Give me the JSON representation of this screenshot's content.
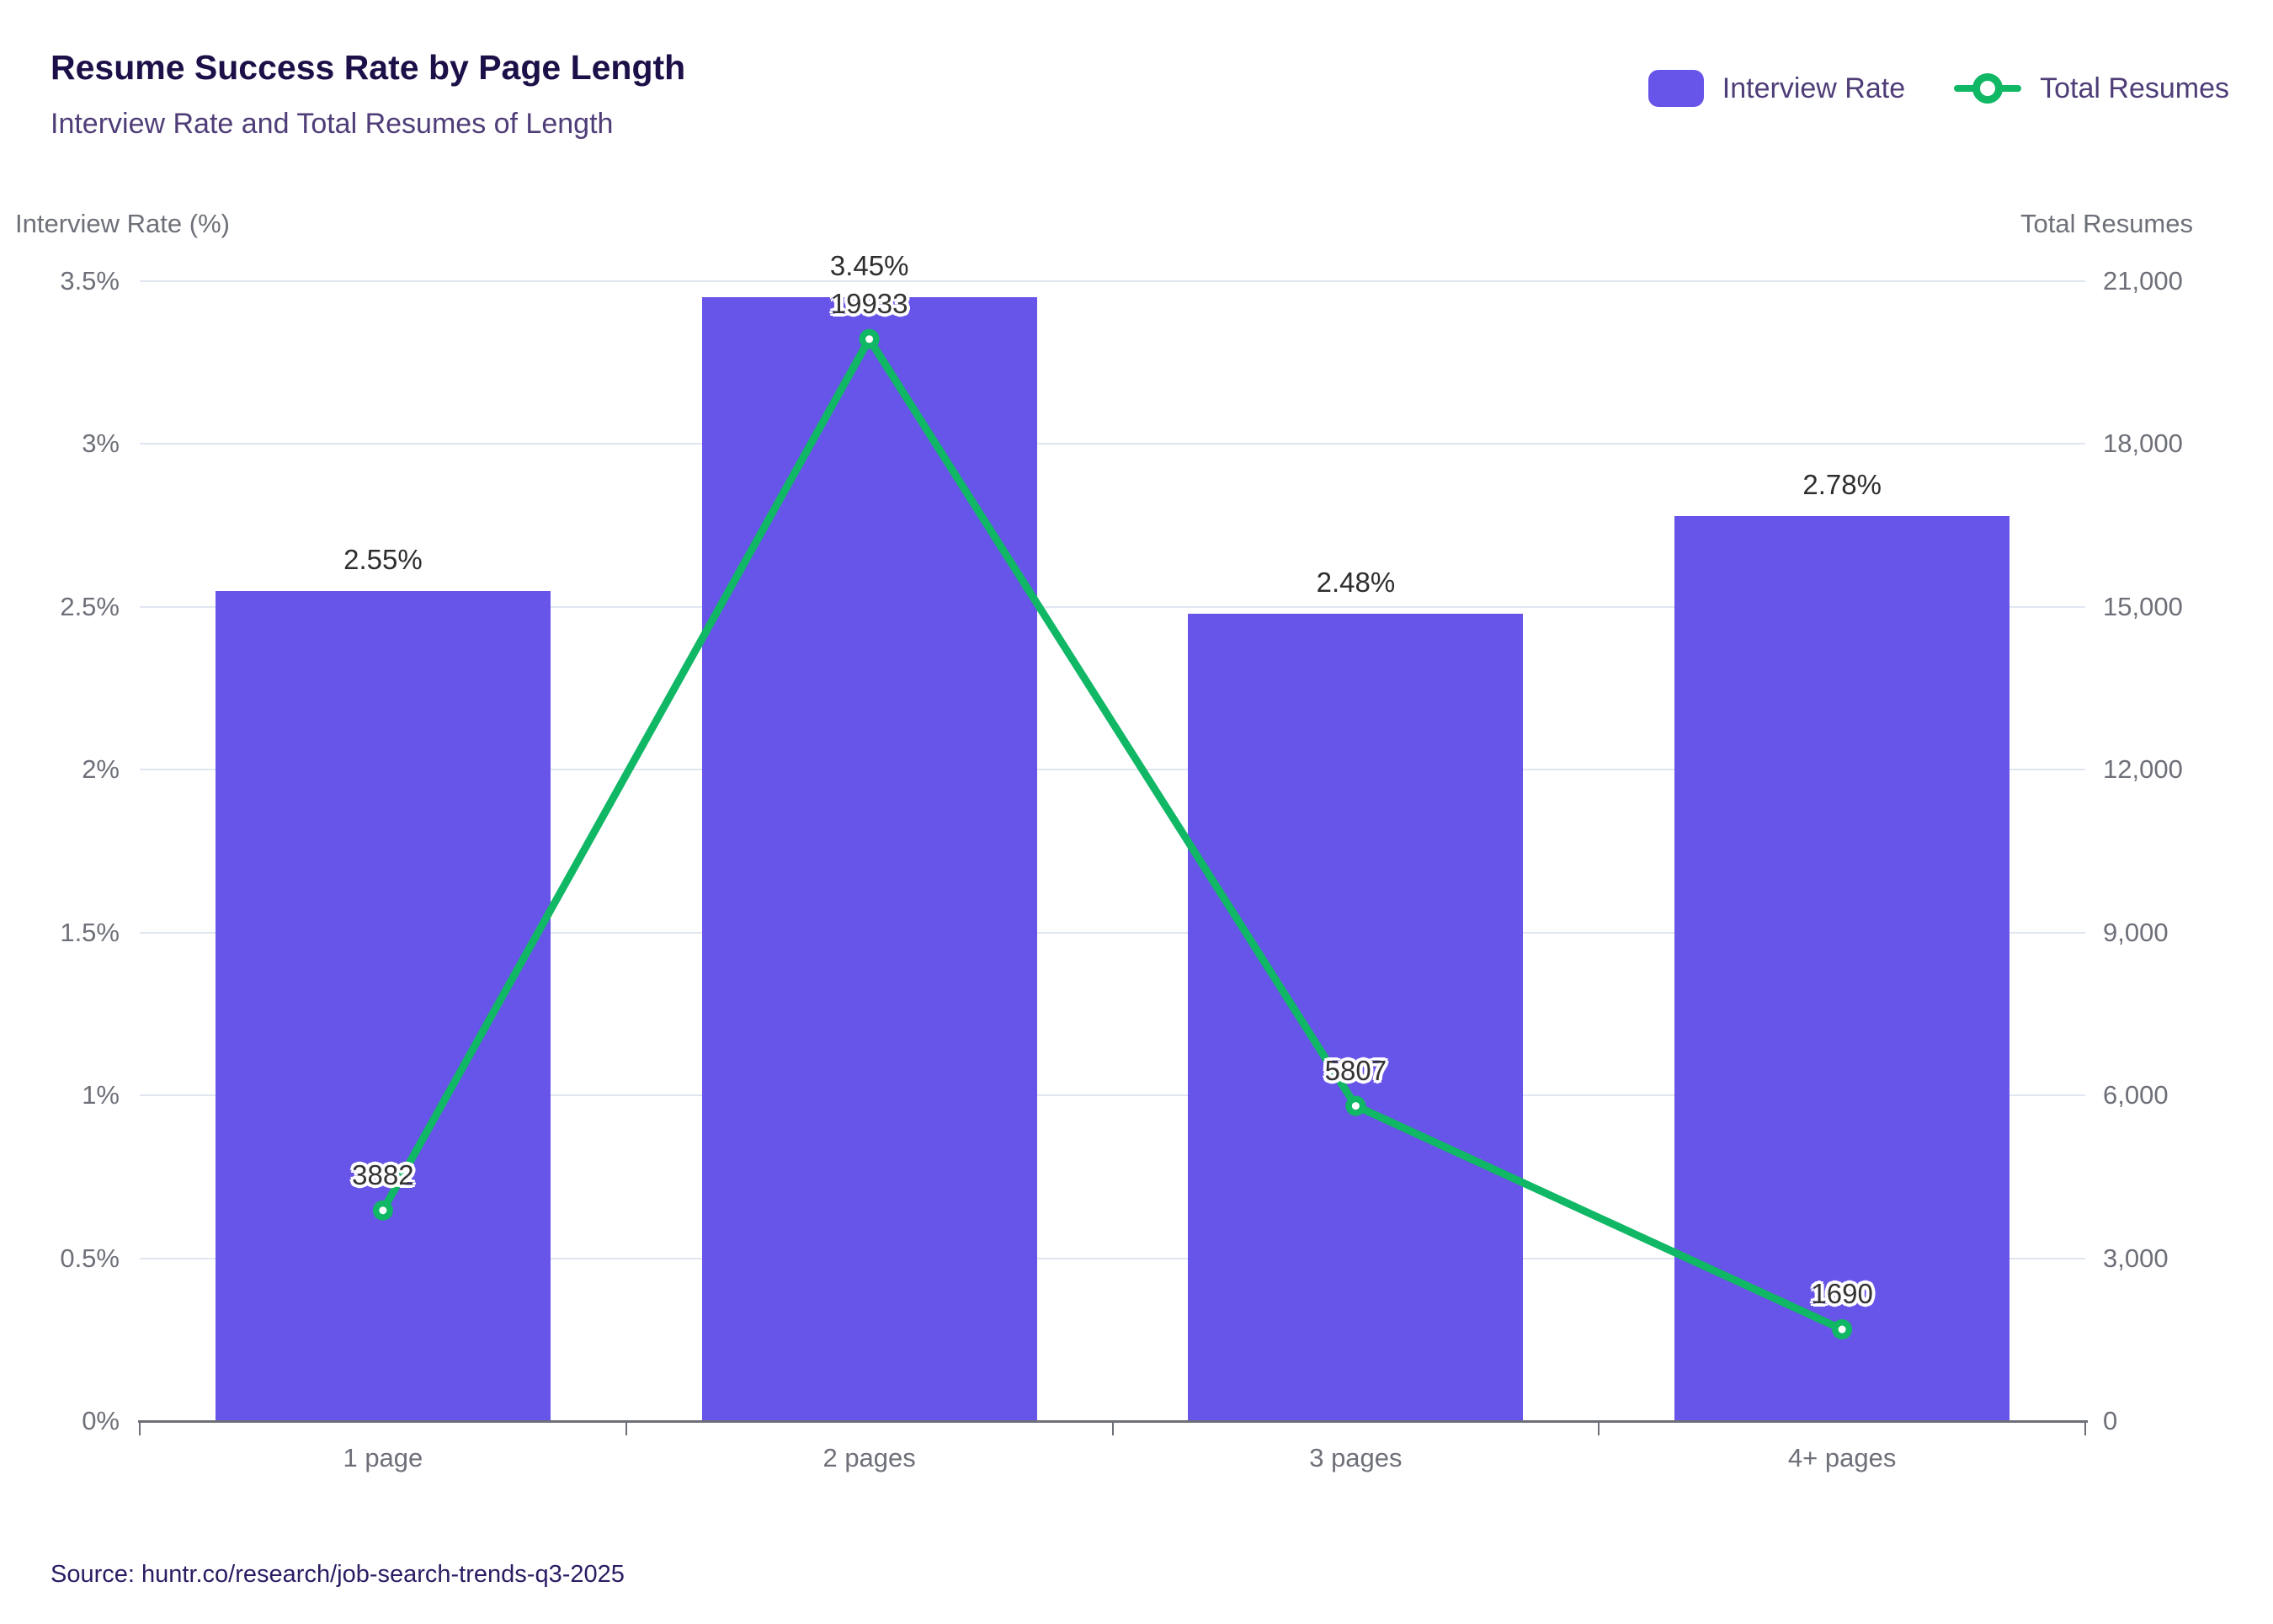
{
  "header": {
    "title": "Resume Success Rate by Page Length",
    "subtitle": "Interview Rate and Total Resumes of Length"
  },
  "legend": {
    "items": [
      {
        "label": "Interview Rate",
        "marker": "bar-swatch",
        "color": "#6754E8"
      },
      {
        "label": "Total Resumes",
        "marker": "line-ring",
        "color": "#10B764"
      }
    ]
  },
  "source": "Source: huntr.co/research/job-search-trends-q3-2025",
  "colors": {
    "bar": "#6754E8",
    "line": "#10B764",
    "axis_text": "#6E7079",
    "gridline": "#E0E6F1",
    "title": "#1D1048",
    "subtitle": "#4F3D78",
    "source_text": "#2B1C63"
  },
  "chart_data": {
    "type": "bar",
    "subtype": "bar+line dual axis",
    "title": "Resume Success Rate by Page Length",
    "subtitle": "Interview Rate and Total Resumes of Length",
    "categories": [
      "1 page",
      "2 pages",
      "3 pages",
      "4+ pages"
    ],
    "series": [
      {
        "name": "Interview Rate",
        "type": "bar",
        "axis": "left",
        "values": [
          2.55,
          3.45,
          2.48,
          2.78
        ],
        "labels": [
          "2.55%",
          "3.45%",
          "2.48%",
          "2.78%"
        ],
        "color": "#6754E8"
      },
      {
        "name": "Total Resumes",
        "type": "line",
        "axis": "right",
        "values": [
          3882,
          19933,
          5807,
          1690
        ],
        "labels": [
          "3882",
          "19933",
          "5807",
          "1690"
        ],
        "color": "#10B764"
      }
    ],
    "left_axis": {
      "name": "Interview Rate (%)",
      "min": 0,
      "max": 3.5,
      "tick_step": 0.5,
      "tick_labels": [
        "0%",
        "0.5%",
        "1%",
        "1.5%",
        "2%",
        "2.5%",
        "3%",
        "3.5%"
      ]
    },
    "right_axis": {
      "name": "Total Resumes",
      "min": 0,
      "max": 21000,
      "tick_step": 3000,
      "tick_labels": [
        "0",
        "3,000",
        "6,000",
        "9,000",
        "12,000",
        "15,000",
        "18,000",
        "21,000"
      ]
    },
    "grid": true,
    "legend_position": "top-right"
  }
}
